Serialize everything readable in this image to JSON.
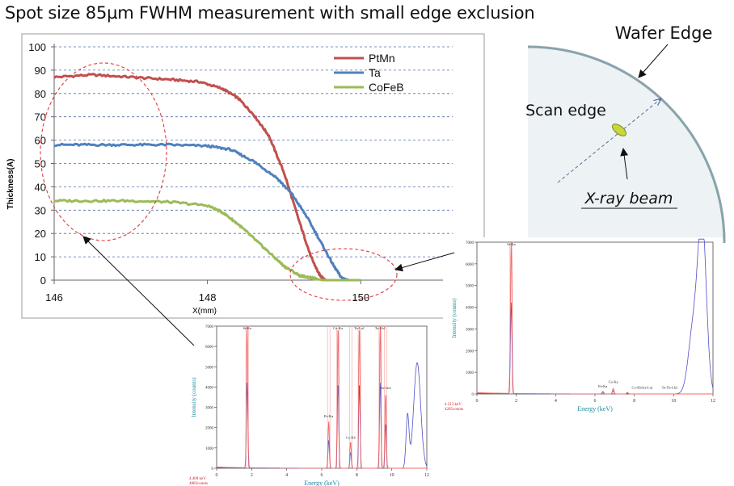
{
  "title": "Spot size 85µm FWHM measurement with small edge exclusion",
  "colors": {
    "PtMn": "#c0504d",
    "Ta": "#4f81bd",
    "CoFeB": "#9bbb59",
    "ellipse": "#e03a3a",
    "wafer_edge": "#8aa3ac",
    "wafer_fill": "#edf3f5",
    "spot": "#c8d83a",
    "spectrum_red": "#f06a6a",
    "spectrum_blue": "#5050c8"
  },
  "chart_data": [
    {
      "type": "line",
      "xlabel": "X(mm)",
      "ylabel": "Thickness(A)",
      "xlim": [
        146,
        151.2
      ],
      "ylim": [
        0,
        100
      ],
      "x_ticks": [
        "146",
        "148",
        "150"
      ],
      "y_ticks": [
        "0",
        "10",
        "20",
        "30",
        "40",
        "50",
        "60",
        "70",
        "80",
        "90",
        "100"
      ],
      "grid": "horizontal dashed",
      "legend": "top-right",
      "series": [
        {
          "name": "PtMn",
          "x": [
            146.0,
            146.5,
            147.0,
            147.5,
            147.9,
            148.2,
            148.4,
            148.6,
            148.8,
            149.0,
            149.2,
            149.35,
            149.45,
            149.5,
            149.55,
            149.7,
            150.0
          ],
          "y": [
            87,
            88,
            87,
            86,
            85,
            82,
            78,
            71,
            62,
            46,
            25,
            10,
            3,
            1,
            0,
            0,
            0
          ]
        },
        {
          "name": "Ta",
          "x": [
            146.0,
            146.5,
            147.0,
            147.5,
            148.0,
            148.3,
            148.6,
            148.9,
            149.1,
            149.3,
            149.5,
            149.65,
            149.75,
            149.85,
            150.0
          ],
          "y": [
            58,
            58,
            58,
            58,
            57.5,
            56,
            51,
            44,
            37,
            27,
            15,
            6,
            1,
            0,
            0
          ]
        },
        {
          "name": "CoFeB",
          "x": [
            146.0,
            146.5,
            147.0,
            147.5,
            148.0,
            148.2,
            148.4,
            148.6,
            148.8,
            149.0,
            149.2,
            149.35,
            149.5,
            149.7,
            150.0
          ],
          "y": [
            34,
            34,
            34,
            33.5,
            32,
            29,
            24,
            18,
            12,
            6,
            2,
            1,
            0,
            0,
            0
          ]
        }
      ]
    },
    {
      "type": "line",
      "xlabel": "Energy (keV)",
      "ylabel": "Intensity (counts)",
      "xlim": [
        0,
        12
      ],
      "ylim": [
        0,
        7000
      ],
      "x_ticks": [
        "0",
        "2",
        "4",
        "6",
        "8",
        "10",
        "12"
      ],
      "y_ticks": [
        "0",
        "1000",
        "2000",
        "3000",
        "4000",
        "5000",
        "6000",
        "7000"
      ],
      "annotations": [
        "Si-Ka",
        "Fe-Ka",
        "Co-Ka",
        "Co-Kb",
        "Ta-La1",
        "Ta-Lb1",
        "Ta-Lb2"
      ],
      "footer": [
        "4.400 keV",
        "4882counts"
      ],
      "peaks": [
        {
          "name": "Si-Ka",
          "energy": 1.74,
          "height": 7000
        },
        {
          "name": "Fe-Ka",
          "energy": 6.4,
          "height": 2300
        },
        {
          "name": "Co-Ka",
          "energy": 6.93,
          "height": 7000
        },
        {
          "name": "Co-Kb",
          "energy": 7.65,
          "height": 1300
        },
        {
          "name": "Ta-La1",
          "energy": 8.15,
          "height": 7000
        },
        {
          "name": "Ta-Lb1",
          "energy": 9.34,
          "height": 7000
        },
        {
          "name": "Ta-Lb2",
          "energy": 9.65,
          "height": 3700
        }
      ]
    },
    {
      "type": "line",
      "xlabel": "Energy (keV)",
      "ylabel": "Intensity (counts)",
      "xlim": [
        0,
        12
      ],
      "ylim": [
        0,
        7000
      ],
      "x_ticks": [
        "0",
        "2",
        "4",
        "6",
        "8",
        "10",
        "12"
      ],
      "y_ticks": [
        "0",
        "1000",
        "2000",
        "3000",
        "4000",
        "5000",
        "6000",
        "7000"
      ],
      "annotations": [
        "Si-Ka",
        "Fe-Ka",
        "Co-Ka",
        "Co-Kb1(a-La)",
        "Ta-Tb-Lb2"
      ],
      "footer": [
        "4.213 keV",
        "4205counts"
      ],
      "peaks": [
        {
          "name": "Si-Ka",
          "energy": 1.74,
          "height": 7000
        },
        {
          "name": "Fe-Ka",
          "energy": 6.4,
          "height": 120
        },
        {
          "name": "Co-Ka",
          "energy": 6.93,
          "height": 260
        },
        {
          "name": "Co-Kb1(a-La)",
          "energy": 7.65,
          "height": 70
        }
      ]
    }
  ],
  "wafer": {
    "wafer_edge_label": "Wafer Edge",
    "scan_edge_label": "Scan edge",
    "xray_label": "X-ray beam"
  }
}
